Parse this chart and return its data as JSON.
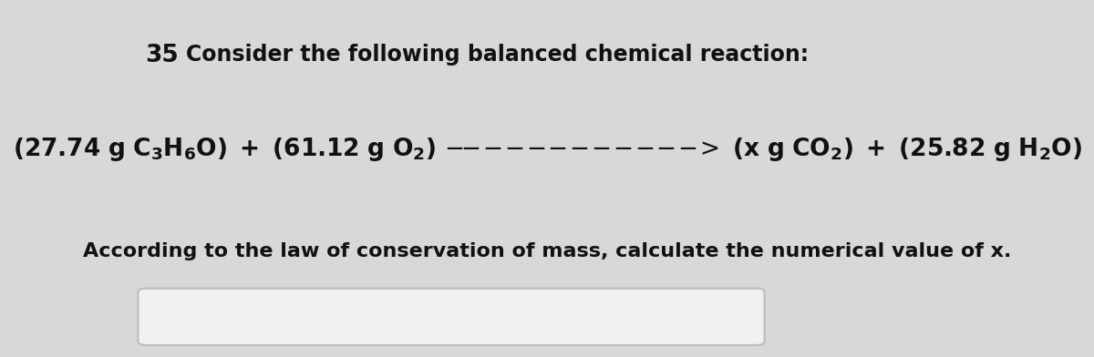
{
  "background_color": "#d8d8d8",
  "content_bg": "#e8e8e8",
  "question_number": "35",
  "header_text": "Consider the following balanced chemical reaction:",
  "reaction_line": "(27.74 g C₃H₆O) + (61.12 g O₂) ------------> (x g CO₂) + (25.82 g H₂O)",
  "footer_text": "According to the law of conservation of mass, calculate the numerical value of x.",
  "answer_box_color": "#f0f0f0",
  "answer_box_border": "#bbbbbb",
  "text_color": "#111111",
  "header_fontsize": 17,
  "reaction_fontsize": 19,
  "footer_fontsize": 16,
  "number_fontsize": 19
}
